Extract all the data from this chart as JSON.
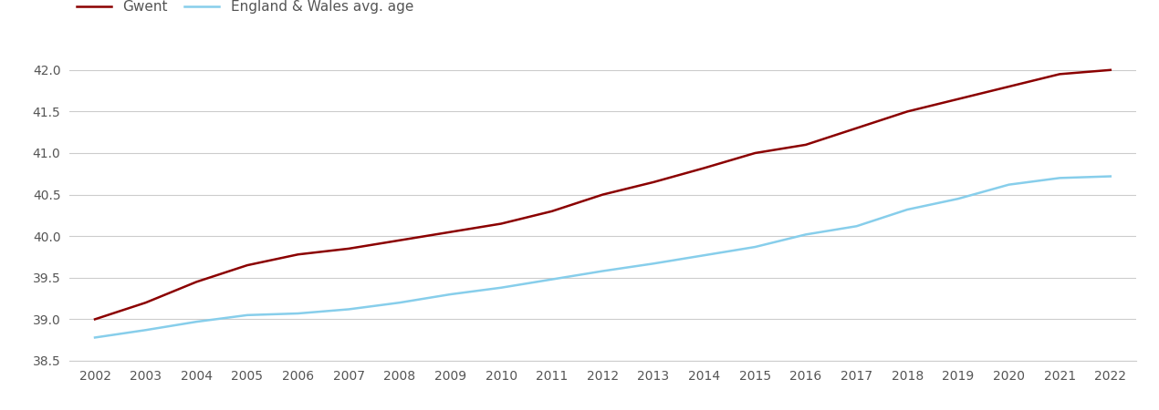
{
  "years": [
    2002,
    2003,
    2004,
    2005,
    2006,
    2007,
    2008,
    2009,
    2010,
    2011,
    2012,
    2013,
    2014,
    2015,
    2016,
    2017,
    2018,
    2019,
    2020,
    2021,
    2022
  ],
  "gwent": [
    39.0,
    39.2,
    39.45,
    39.65,
    39.78,
    39.85,
    39.95,
    40.05,
    40.15,
    40.3,
    40.5,
    40.65,
    40.82,
    41.0,
    41.1,
    41.3,
    41.5,
    41.65,
    41.8,
    41.95,
    42.0
  ],
  "england_wales": [
    38.78,
    38.87,
    38.97,
    39.05,
    39.07,
    39.12,
    39.2,
    39.3,
    39.38,
    39.48,
    39.58,
    39.67,
    39.77,
    39.87,
    40.02,
    40.12,
    40.32,
    40.45,
    40.62,
    40.7,
    40.72
  ],
  "gwent_color": "#8B0000",
  "ew_color": "#87CEEB",
  "gwent_label": "Gwent",
  "ew_label": "England & Wales avg. age",
  "ylim_min": 38.5,
  "ylim_max": 42.25,
  "yticks": [
    38.5,
    39.0,
    39.5,
    40.0,
    40.5,
    41.0,
    41.5,
    42.0
  ],
  "background_color": "#ffffff",
  "grid_color": "#cccccc",
  "line_width": 1.8,
  "legend_fontsize": 11,
  "tick_fontsize": 10,
  "tick_color": "#555555"
}
